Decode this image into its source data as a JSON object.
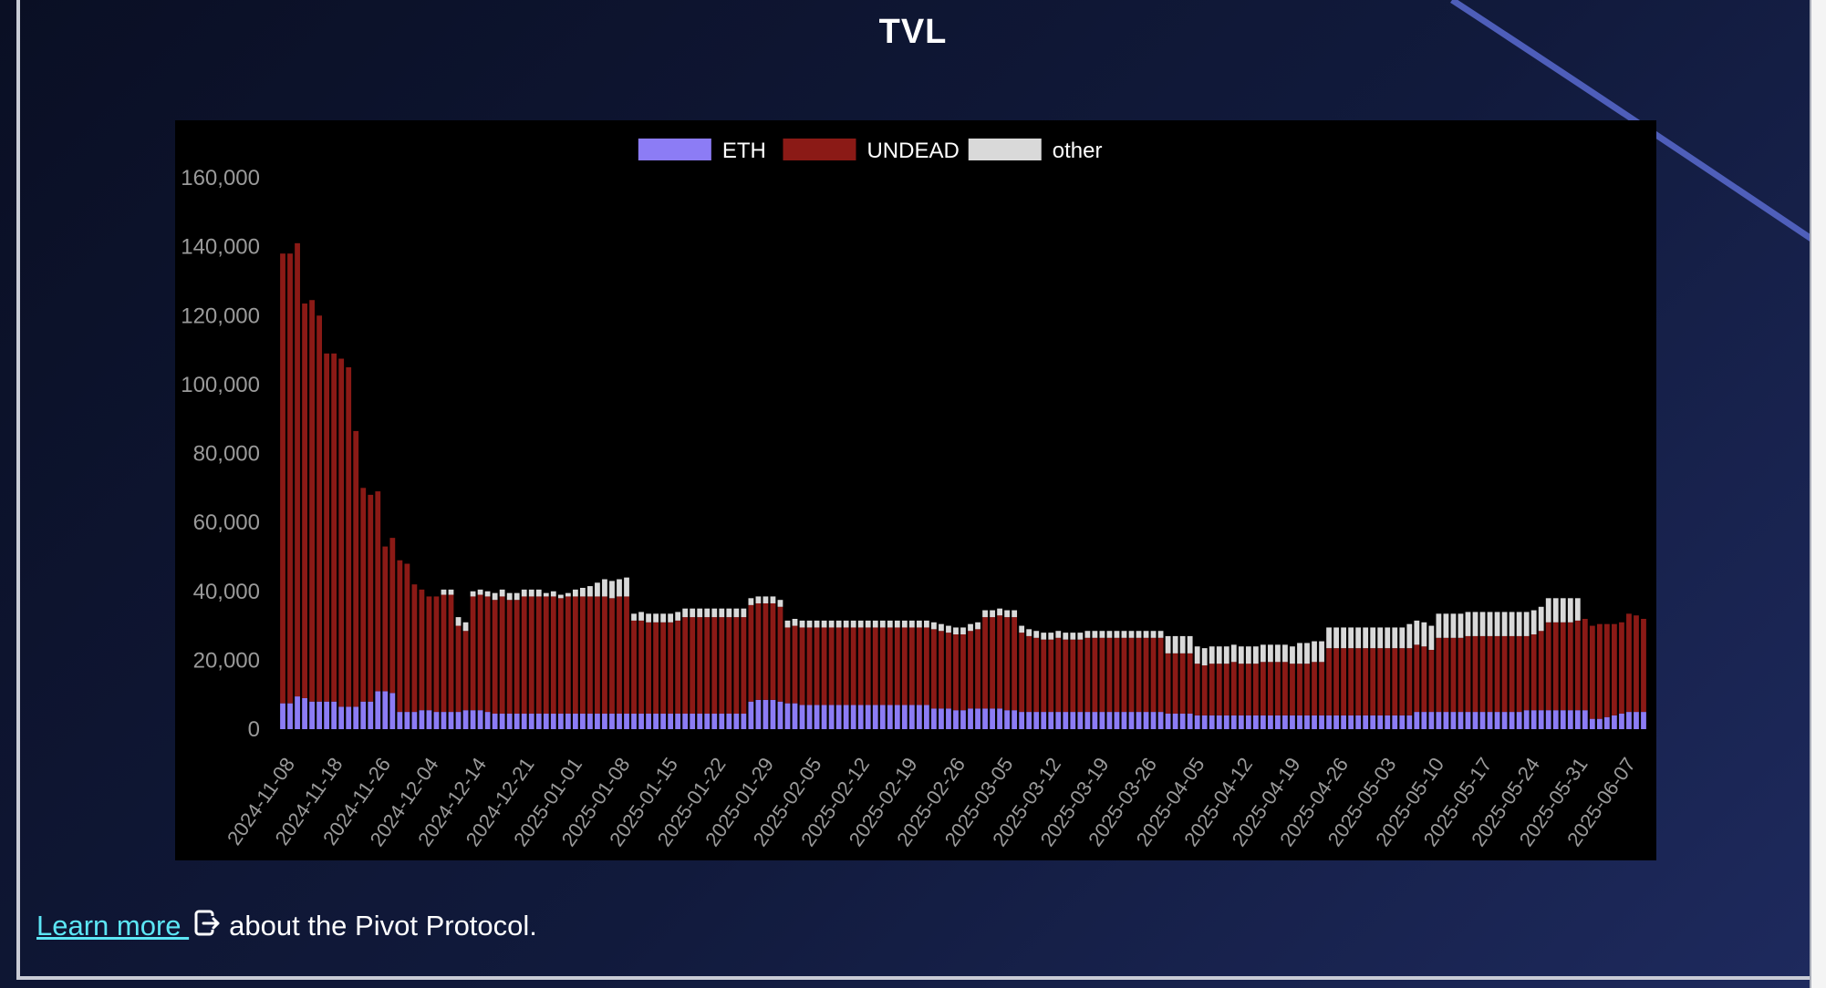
{
  "page": {
    "title": "TVL",
    "footer": {
      "link_text": "Learn more ",
      "link_icon": "external-link-icon",
      "suffix": "about the Pivot Protocol."
    }
  },
  "chart_data": {
    "type": "bar",
    "stacked": true,
    "title": "TVL",
    "xlabel": "",
    "ylabel": "",
    "ylim": [
      0,
      160000
    ],
    "y_ticks": [
      "0",
      "20,000",
      "40,000",
      "60,000",
      "80,000",
      "100,000",
      "120,000",
      "140,000",
      "160,000"
    ],
    "x_tick_labels": [
      "2024-11-08",
      "2024-11-18",
      "2024-11-26",
      "2024-12-04",
      "2024-12-14",
      "2024-12-21",
      "2025-01-01",
      "2025-01-08",
      "2025-01-15",
      "2025-01-22",
      "2025-01-29",
      "2025-02-05",
      "2025-02-12",
      "2025-02-19",
      "2025-02-26",
      "2025-03-05",
      "2025-03-12",
      "2025-03-19",
      "2025-03-26",
      "2025-04-05",
      "2025-04-12",
      "2025-04-19",
      "2025-04-26",
      "2025-05-03",
      "2025-05-10",
      "2025-05-17",
      "2025-05-24",
      "2025-05-31",
      "2025-06-07"
    ],
    "legend": {
      "position": "top-center"
    },
    "colors": {
      "ETH": "#8c7cf5",
      "UNDEAD": "#8b1a16",
      "other": "#d9d9d9",
      "background": "#000000",
      "axis_text": "#9a9a9a"
    },
    "series": [
      {
        "name": "ETH",
        "color": "#8c7cf5",
        "values": [
          7500,
          7500,
          9500,
          9000,
          8000,
          8000,
          8000,
          8000,
          6500,
          6500,
          6500,
          8000,
          8000,
          11000,
          11000,
          10500,
          5000,
          5000,
          5000,
          5500,
          5500,
          5000,
          5000,
          5000,
          5000,
          5500,
          5500,
          5500,
          5000,
          4500,
          4500,
          4500,
          4500,
          4500,
          4500,
          4500,
          4500,
          4500,
          4500,
          4500,
          4500,
          4500,
          4500,
          4500,
          4500,
          4500,
          4500,
          4500,
          4500,
          4500,
          4500,
          4500,
          4500,
          4500,
          4500,
          4500,
          4500,
          4500,
          4500,
          4500,
          4500,
          4500,
          4500,
          4500,
          8000,
          8500,
          8500,
          8500,
          8000,
          7500,
          7500,
          7000,
          7000,
          7000,
          7000,
          7000,
          7000,
          7000,
          7000,
          7000,
          7000,
          7000,
          7000,
          7000,
          7000,
          7000,
          7000,
          7000,
          7000,
          6000,
          6000,
          6000,
          5500,
          5500,
          6000,
          6000,
          6000,
          6000,
          6000,
          5500,
          5500,
          5000,
          5000,
          5000,
          5000,
          5000,
          5000,
          5000,
          5000,
          5000,
          5000,
          5000,
          5000,
          5000,
          5000,
          5000,
          5000,
          5000,
          5000,
          5000,
          5000,
          4500,
          4500,
          4500,
          4500,
          4000,
          4000,
          4000,
          4000,
          4000,
          4000,
          4000,
          4000,
          4000,
          4000,
          4000,
          4000,
          4000,
          4000,
          4000,
          4000,
          4000,
          4000,
          4000,
          4000,
          4000,
          4000,
          4000,
          4000,
          4000,
          4000,
          4000,
          4000,
          4000,
          4000,
          5000,
          5000,
          5000,
          5000,
          5000,
          5000,
          5000,
          5000,
          5000,
          5000,
          5000,
          5000,
          5000,
          5000,
          5000,
          5500,
          5500,
          5500,
          5500,
          5500,
          5500,
          5500,
          5500,
          5500,
          3000,
          3000,
          3500,
          4000,
          4500,
          5000,
          5000,
          5000
        ]
      },
      {
        "name": "UNDEAD",
        "color": "#8b1a16",
        "values": [
          130500,
          130500,
          131500,
          114500,
          116500,
          112000,
          101000,
          101000,
          101000,
          98500,
          80000,
          62000,
          60000,
          58000,
          42000,
          45000,
          44000,
          43000,
          37000,
          35000,
          33000,
          33500,
          34000,
          34000,
          25000,
          23000,
          33000,
          33500,
          33500,
          33000,
          34000,
          33000,
          33000,
          34000,
          34000,
          34000,
          34000,
          34000,
          33500,
          34000,
          34000,
          34000,
          34000,
          34000,
          34000,
          33500,
          34000,
          34000,
          27000,
          27000,
          26500,
          26500,
          26500,
          26500,
          27000,
          28000,
          28000,
          28000,
          28000,
          28000,
          28000,
          28000,
          28000,
          28000,
          28000,
          28000,
          28000,
          28000,
          27500,
          22000,
          22500,
          22500,
          22500,
          22500,
          22500,
          22500,
          22500,
          22500,
          22500,
          22500,
          22500,
          22500,
          22500,
          22500,
          22500,
          22500,
          22500,
          22500,
          22500,
          23000,
          22500,
          22000,
          22000,
          22000,
          22500,
          23000,
          26500,
          26500,
          27000,
          27000,
          27000,
          23000,
          22000,
          21500,
          21000,
          21000,
          21500,
          21000,
          21000,
          21000,
          21500,
          21500,
          21500,
          21500,
          21500,
          21500,
          21500,
          21500,
          21500,
          21500,
          21500,
          17500,
          17500,
          17500,
          17500,
          15000,
          14500,
          15000,
          15000,
          15000,
          15500,
          15000,
          15000,
          15000,
          15500,
          15500,
          15500,
          15500,
          15000,
          15000,
          15000,
          15500,
          15500,
          19500,
          19500,
          19500,
          19500,
          19500,
          19500,
          19500,
          19500,
          19500,
          19500,
          19500,
          19500,
          19500,
          19000,
          18000,
          21500,
          21500,
          21500,
          21500,
          22000,
          22000,
          22000,
          22000,
          22000,
          22000,
          22000,
          22000,
          21500,
          22000,
          23000,
          25500,
          25500,
          25500,
          25500,
          26000,
          26500,
          27000,
          27500,
          27000,
          26500,
          26500,
          28500,
          28000,
          27000,
          26000,
          25000,
          24500
        ]
      },
      {
        "name": "other",
        "color": "#d9d9d9",
        "values": [
          0,
          0,
          0,
          0,
          0,
          0,
          0,
          0,
          0,
          0,
          0,
          0,
          0,
          0,
          0,
          0,
          0,
          0,
          0,
          0,
          0,
          0,
          1500,
          1500,
          2500,
          2500,
          1500,
          1500,
          1500,
          2000,
          2000,
          2000,
          2000,
          2000,
          2000,
          2000,
          1000,
          1500,
          1000,
          1000,
          2000,
          2500,
          3000,
          4000,
          5000,
          5000,
          5000,
          5500,
          2000,
          2500,
          2500,
          2500,
          2500,
          2500,
          2500,
          2500,
          2500,
          2500,
          2500,
          2500,
          2500,
          2500,
          2500,
          2500,
          2000,
          2000,
          2000,
          2000,
          2000,
          2000,
          2000,
          2000,
          2000,
          2000,
          2000,
          2000,
          2000,
          2000,
          2000,
          2000,
          2000,
          2000,
          2000,
          2000,
          2000,
          2000,
          2000,
          2000,
          2000,
          2000,
          2000,
          2000,
          2000,
          2000,
          2000,
          2000,
          2000,
          2000,
          2000,
          2000,
          2000,
          2000,
          2000,
          2000,
          2000,
          2000,
          2000,
          2000,
          2000,
          2000,
          2000,
          2000,
          2000,
          2000,
          2000,
          2000,
          2000,
          2000,
          2000,
          2000,
          2000,
          5000,
          5000,
          5000,
          5000,
          5000,
          5000,
          5000,
          5000,
          5000,
          5000,
          5000,
          5000,
          5000,
          5000,
          5000,
          5000,
          5000,
          5000,
          6000,
          6000,
          6000,
          6000,
          6000,
          6000,
          6000,
          6000,
          6000,
          6000,
          6000,
          6000,
          6000,
          6000,
          6000,
          7000,
          7000,
          7000,
          7000,
          7000,
          7000,
          7000,
          7000,
          7000,
          7000,
          7000,
          7000,
          7000,
          7000,
          7000,
          7000,
          7000,
          7000,
          7000,
          7000,
          7000,
          7000,
          7000,
          6500,
          0,
          0,
          0,
          0,
          0,
          0,
          0,
          0
        ]
      }
    ]
  }
}
